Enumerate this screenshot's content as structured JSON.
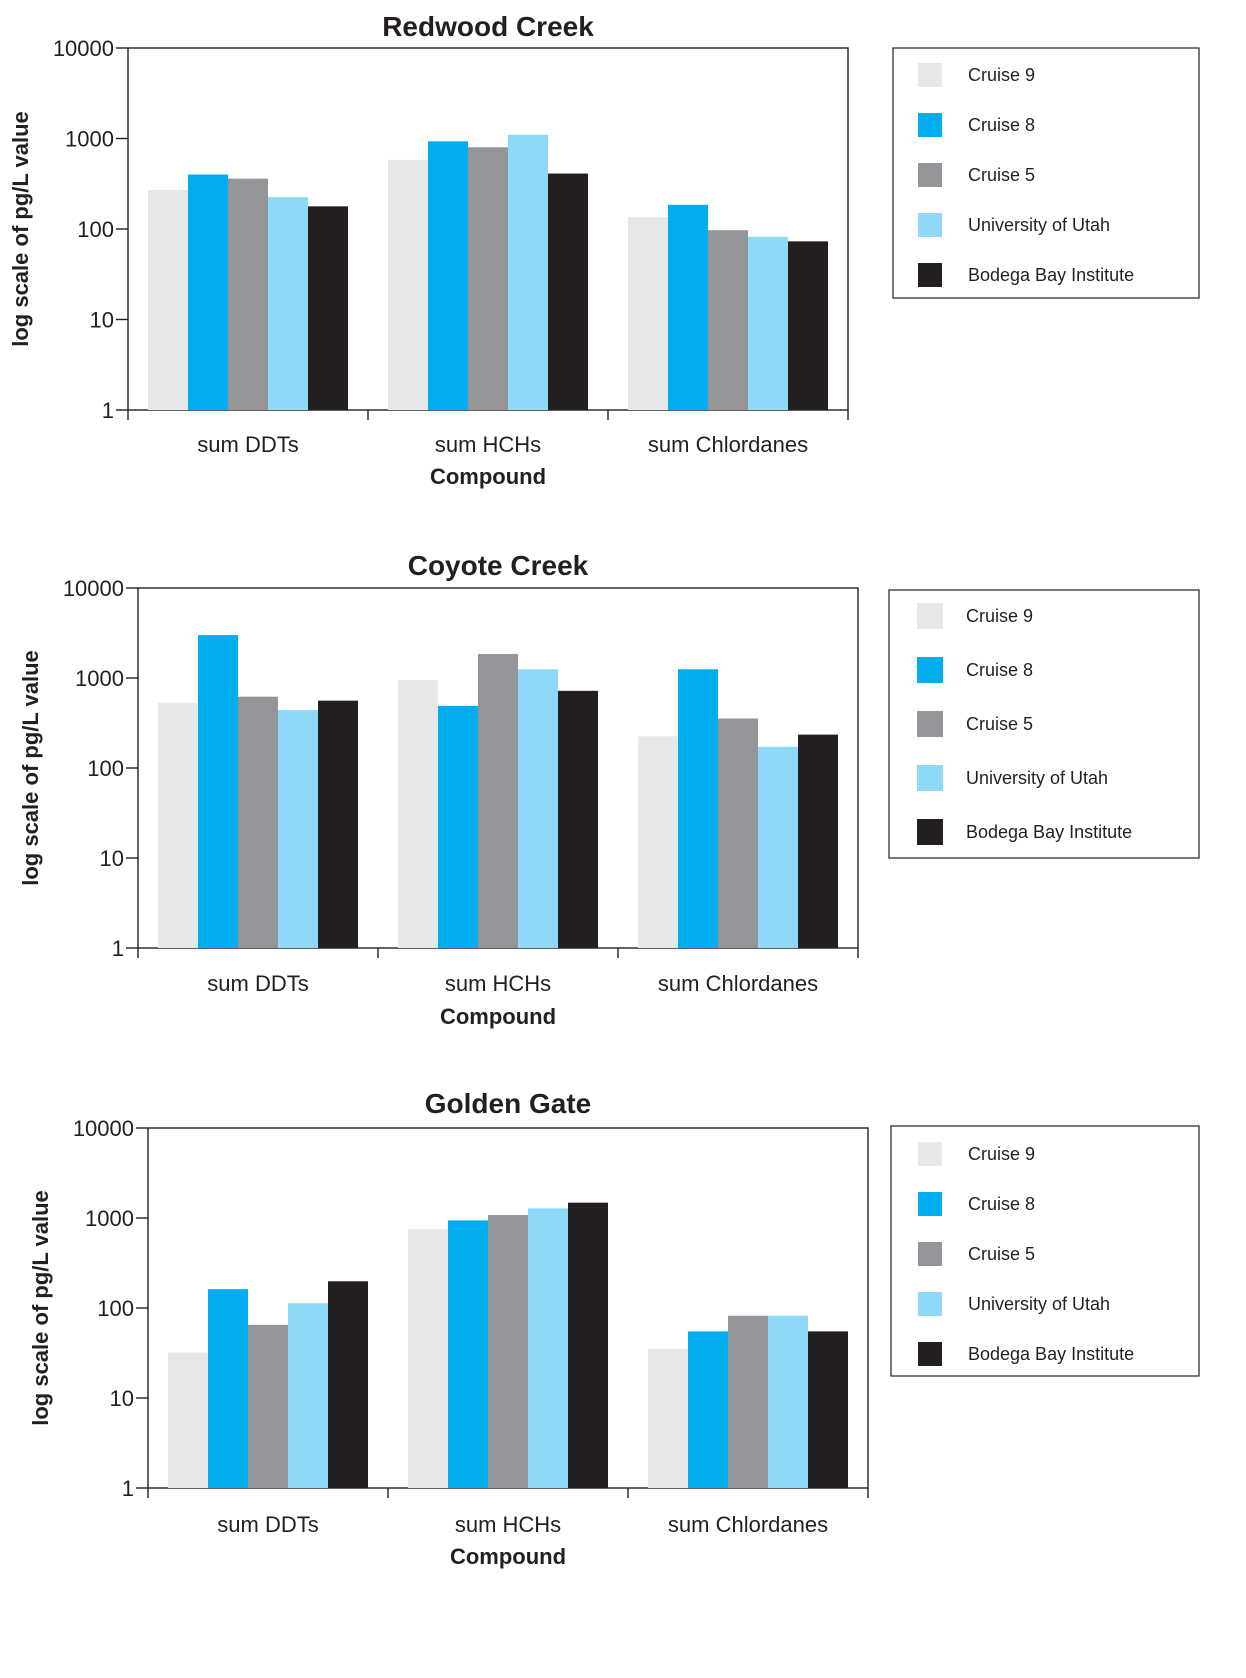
{
  "chart_data": [
    {
      "type": "bar",
      "title": "Redwood Creek",
      "xlabel": "Compound",
      "ylabel": "log scale of pg/L value",
      "yscale": "log",
      "ylim": [
        1,
        10000
      ],
      "yticks": [
        "1",
        "10",
        "100",
        "1000",
        "10000"
      ],
      "grid": false,
      "legend_position": "right",
      "categories": [
        "sum DDTs",
        "sum HCHs",
        "sum Chlordanes"
      ],
      "series": [
        {
          "name": "Cruise 9",
          "color": "#e6e7e8",
          "values": [
            270,
            580,
            135
          ]
        },
        {
          "name": "Cruise 8",
          "color": "#00aeef",
          "values": [
            400,
            930,
            185
          ]
        },
        {
          "name": "Cruise 5",
          "color": "#939598",
          "values": [
            360,
            800,
            97
          ]
        },
        {
          "name": "University of Utah",
          "color": "#8ed8f8",
          "values": [
            225,
            1100,
            82
          ]
        },
        {
          "name": "Bodega Bay Institute",
          "color": "#231f20",
          "values": [
            178,
            410,
            73
          ]
        }
      ]
    },
    {
      "type": "bar",
      "title": "Coyote Creek",
      "xlabel": "Compound",
      "ylabel": "log scale of pg/L value",
      "yscale": "log",
      "ylim": [
        1,
        10000
      ],
      "yticks": [
        "1",
        "10",
        "100",
        "1000",
        "10000"
      ],
      "grid": false,
      "legend_position": "right",
      "categories": [
        "sum DDTs",
        "sum HCHs",
        "sum Chlordanes"
      ],
      "series": [
        {
          "name": "Cruise 9",
          "color": "#e6e7e8",
          "values": [
            530,
            950,
            225
          ]
        },
        {
          "name": "Cruise 8",
          "color": "#00aeef",
          "values": [
            3000,
            490,
            1250
          ]
        },
        {
          "name": "Cruise 5",
          "color": "#939598",
          "values": [
            620,
            1850,
            355
          ]
        },
        {
          "name": "University of Utah",
          "color": "#8ed8f8",
          "values": [
            440,
            1250,
            172
          ]
        },
        {
          "name": "Bodega Bay Institute",
          "color": "#231f20",
          "values": [
            560,
            720,
            235
          ]
        }
      ]
    },
    {
      "type": "bar",
      "title": "Golden Gate",
      "xlabel": "Compound",
      "ylabel": "log scale of pg/L value",
      "yscale": "log",
      "ylim": [
        1,
        10000
      ],
      "yticks": [
        "1",
        "10",
        "100",
        "1000",
        "10000"
      ],
      "grid": false,
      "legend_position": "right",
      "categories": [
        "sum DDTs",
        "sum HCHs",
        "sum Chlordanes"
      ],
      "series": [
        {
          "name": "Cruise 9",
          "color": "#e6e7e8",
          "values": [
            32,
            750,
            35
          ]
        },
        {
          "name": "Cruise 8",
          "color": "#00aeef",
          "values": [
            162,
            940,
            55
          ]
        },
        {
          "name": "Cruise 5",
          "color": "#939598",
          "values": [
            65,
            1080,
            82
          ]
        },
        {
          "name": "University of Utah",
          "color": "#8ed8f8",
          "values": [
            113,
            1280,
            82
          ]
        },
        {
          "name": "Bodega Bay Institute",
          "color": "#231f20",
          "values": [
            198,
            1480,
            55
          ]
        }
      ]
    }
  ]
}
